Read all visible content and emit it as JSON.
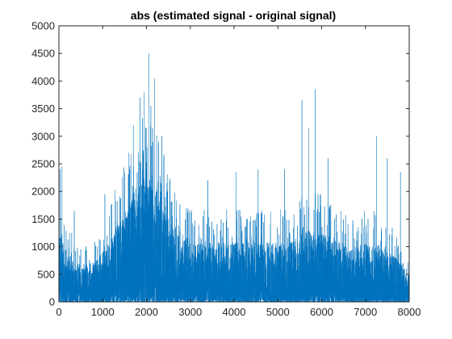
{
  "chart_data": {
    "type": "line",
    "title": "abs (estimated signal - original signal)",
    "xlabel": "",
    "ylabel": "",
    "xlim": [
      0,
      8000
    ],
    "ylim": [
      0,
      5000
    ],
    "xticks": [
      0,
      1000,
      2000,
      3000,
      4000,
      5000,
      6000,
      7000,
      8000
    ],
    "xtick_labels": [
      "0",
      "1000",
      "2000",
      "3000",
      "4000",
      "5000",
      "6000",
      "7000",
      "8000"
    ],
    "yticks": [
      0,
      500,
      1000,
      1500,
      2000,
      2500,
      3000,
      3500,
      4000,
      4500,
      5000
    ],
    "ytick_labels": [
      "0",
      "500",
      "1000",
      "1500",
      "2000",
      "2500",
      "3000",
      "3500",
      "4000",
      "4500",
      "5000"
    ],
    "grid": false,
    "series_color": "#0072BD",
    "series": [
      {
        "n_samples": 8000,
        "envelope": {
          "x": [
            0,
            200,
            500,
            800,
            1000,
            1300,
            1600,
            1800,
            2000,
            2100,
            2200,
            2400,
            2600,
            2800,
            3000,
            3300,
            3600,
            3900,
            4200,
            4500,
            4800,
            5100,
            5400,
            5600,
            5800,
            6000,
            6200,
            6400,
            6600,
            6800,
            7000,
            7200,
            7400,
            7600,
            7800,
            7950
          ],
          "y": [
            1400,
            1000,
            700,
            800,
            1000,
            1500,
            2000,
            2400,
            2600,
            2600,
            2400,
            1900,
            1500,
            1300,
            1200,
            1200,
            1200,
            1200,
            1200,
            1200,
            1200,
            1200,
            1300,
            1400,
            1400,
            1400,
            1300,
            1200,
            1100,
            1100,
            1200,
            1200,
            1100,
            1000,
            800,
            600
          ]
        },
        "peaks": [
          {
            "x": 30,
            "y": 2400
          },
          {
            "x": 70,
            "y": 2450
          },
          {
            "x": 350,
            "y": 1650
          },
          {
            "x": 1050,
            "y": 1950
          },
          {
            "x": 1600,
            "y": 2700
          },
          {
            "x": 1700,
            "y": 3200
          },
          {
            "x": 1850,
            "y": 3700
          },
          {
            "x": 1950,
            "y": 3800
          },
          {
            "x": 2050,
            "y": 4500
          },
          {
            "x": 2100,
            "y": 3550
          },
          {
            "x": 2180,
            "y": 4050
          },
          {
            "x": 2350,
            "y": 3000
          },
          {
            "x": 3400,
            "y": 2200
          },
          {
            "x": 4050,
            "y": 2350
          },
          {
            "x": 4550,
            "y": 2400
          },
          {
            "x": 5150,
            "y": 2400
          },
          {
            "x": 5550,
            "y": 3650
          },
          {
            "x": 5700,
            "y": 3150
          },
          {
            "x": 5850,
            "y": 3850
          },
          {
            "x": 6150,
            "y": 2600
          },
          {
            "x": 7250,
            "y": 3000
          },
          {
            "x": 7500,
            "y": 2600
          },
          {
            "x": 7800,
            "y": 2350
          }
        ]
      }
    ]
  }
}
